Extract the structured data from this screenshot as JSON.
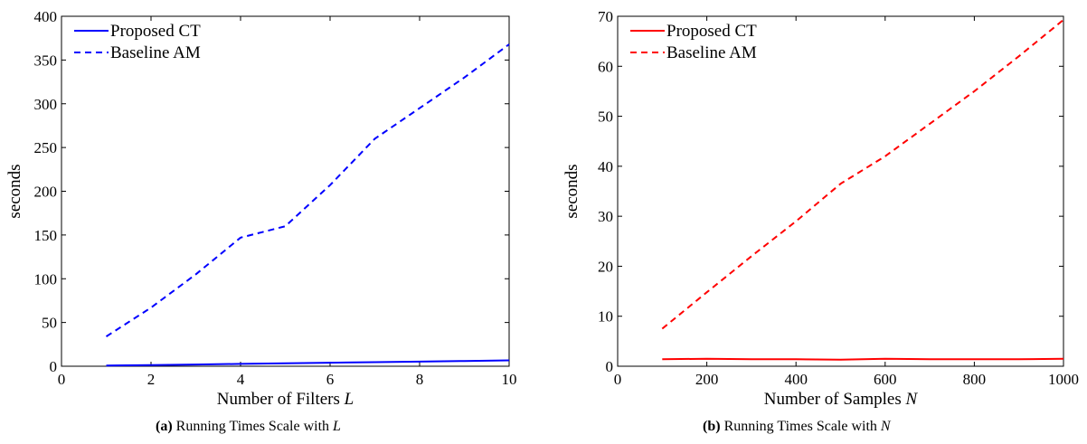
{
  "chart_data": [
    {
      "type": "line",
      "id": "a",
      "xlabel": "Number of Filters",
      "xlabel_var": "L",
      "ylabel": "seconds",
      "xlim": [
        0,
        10
      ],
      "ylim": [
        0,
        400
      ],
      "xticks": [
        "0",
        "2",
        "4",
        "6",
        "8",
        "10"
      ],
      "yticks": [
        "0",
        "50",
        "100",
        "150",
        "200",
        "250",
        "300",
        "350",
        "400"
      ],
      "grid": false,
      "legend_position": "top-left",
      "caption_tag": "(a)",
      "caption_text": "Running Times Scale with",
      "caption_var": "L",
      "series": [
        {
          "name": "Proposed CT",
          "color": "#0000ff",
          "dash": "solid",
          "x": [
            1,
            2,
            3,
            4,
            5,
            6,
            7,
            8,
            9,
            10
          ],
          "values": [
            0.8,
            1.3,
            2.0,
            2.7,
            3.4,
            4.0,
            4.7,
            5.3,
            6.0,
            6.7
          ]
        },
        {
          "name": "Baseline AM",
          "color": "#0000ff",
          "dash": "dashed",
          "x": [
            1,
            2,
            3,
            4,
            5,
            6,
            7,
            8,
            9,
            10
          ],
          "values": [
            34,
            67,
            105,
            147,
            160,
            207,
            260,
            295,
            330,
            368
          ]
        }
      ]
    },
    {
      "type": "line",
      "id": "b",
      "xlabel": "Number of Samples",
      "xlabel_var": "N",
      "ylabel": "seconds",
      "xlim": [
        0,
        1000
      ],
      "ylim": [
        0,
        70
      ],
      "xticks": [
        "0",
        "200",
        "400",
        "600",
        "800",
        "1000"
      ],
      "yticks": [
        "0",
        "10",
        "20",
        "30",
        "40",
        "50",
        "60",
        "70"
      ],
      "grid": false,
      "legend_position": "top-left",
      "caption_tag": "(b)",
      "caption_text": "Running Times Scale with",
      "caption_var": "N",
      "series": [
        {
          "name": "Proposed CT",
          "color": "#ff0000",
          "dash": "solid",
          "x": [
            100,
            200,
            300,
            400,
            500,
            600,
            700,
            800,
            900,
            1000
          ],
          "values": [
            1.4,
            1.5,
            1.4,
            1.4,
            1.3,
            1.5,
            1.4,
            1.4,
            1.4,
            1.5
          ]
        },
        {
          "name": "Baseline AM",
          "color": "#ff0000",
          "dash": "dashed",
          "x": [
            100,
            200,
            300,
            400,
            500,
            600,
            700,
            800,
            900,
            1000
          ],
          "values": [
            7.5,
            14.8,
            22.0,
            29.0,
            36.5,
            42.0,
            48.5,
            55.0,
            62.0,
            69.3
          ]
        }
      ]
    }
  ]
}
